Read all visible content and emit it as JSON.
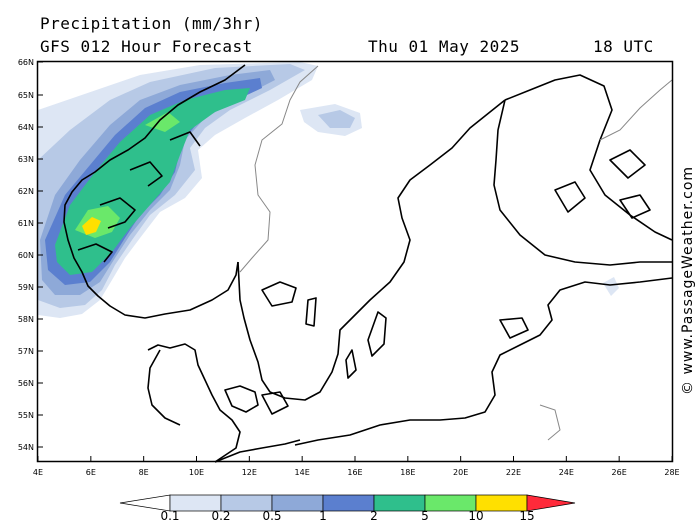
{
  "header": {
    "title": "Precipitation (mm/3hr)",
    "subtitle": "GFS 012 Hour Forecast",
    "date": "Thu 01 May 2025",
    "time": "18 UTC"
  },
  "credit": "© www.PassageWeather.com",
  "map": {
    "region": "Scandinavia / Baltic Sea",
    "lon_labels": [
      "4E",
      "6E",
      "8E",
      "10E",
      "12E",
      "14E",
      "16E",
      "18E",
      "20E",
      "22E",
      "24E",
      "26E",
      "28E"
    ],
    "lat_labels": [
      "66N",
      "65N",
      "64N",
      "63N",
      "62N",
      "61N",
      "60N",
      "59N",
      "58N",
      "57N",
      "56N",
      "55N",
      "54N"
    ],
    "lon_range": [
      4,
      28
    ],
    "lat_range": [
      53.8,
      66
    ]
  },
  "legend": {
    "levels": [
      "0.1",
      "0.2",
      "0.5",
      "1",
      "2",
      "5",
      "10",
      "15"
    ],
    "colors": {
      "below": "#ffffff",
      "bands": [
        "#dde6f4",
        "#b7c9e6",
        "#8ea9d8",
        "#5b7fcf",
        "#2fbf8c",
        "#6ae86a",
        "#ffe000",
        "#ff9a1a",
        "#ff2a3a"
      ]
    }
  }
}
